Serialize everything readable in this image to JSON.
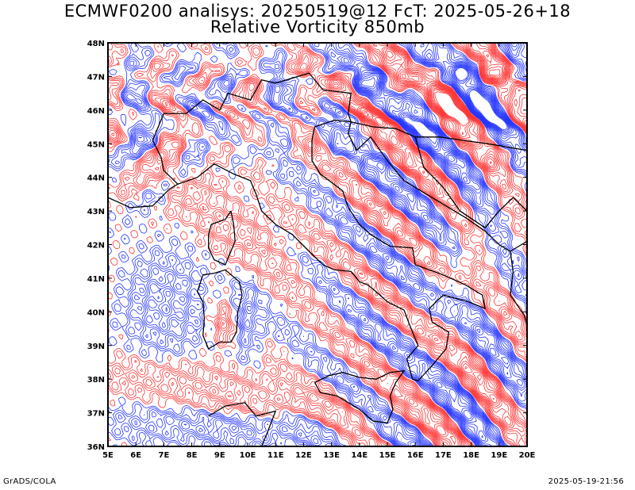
{
  "header": {
    "title_line1": "ECMWF0200 analisys: 20250519@12 FcT: 2025-05-26+18",
    "title_line2": "Relative Vorticity 850mb"
  },
  "footer": {
    "left": "GrADS/COLA",
    "right": "2025-05-19-21:56"
  },
  "map": {
    "lon_range": [
      5,
      20
    ],
    "lat_range": [
      36,
      48
    ],
    "lon_labels": [
      "5E",
      "6E",
      "7E",
      "8E",
      "9E",
      "10E",
      "11E",
      "12E",
      "13E",
      "14E",
      "15E",
      "16E",
      "17E",
      "18E",
      "19E",
      "20E"
    ],
    "lat_labels": [
      "36N",
      "37N",
      "38N",
      "39N",
      "40N",
      "41N",
      "42N",
      "43N",
      "44N",
      "45N",
      "46N",
      "47N",
      "48N"
    ],
    "colors": {
      "positive": "#ff3333",
      "negative": "#2233ff",
      "coastline": "#000000",
      "frame": "#000000",
      "background": "#ffffff"
    }
  }
}
